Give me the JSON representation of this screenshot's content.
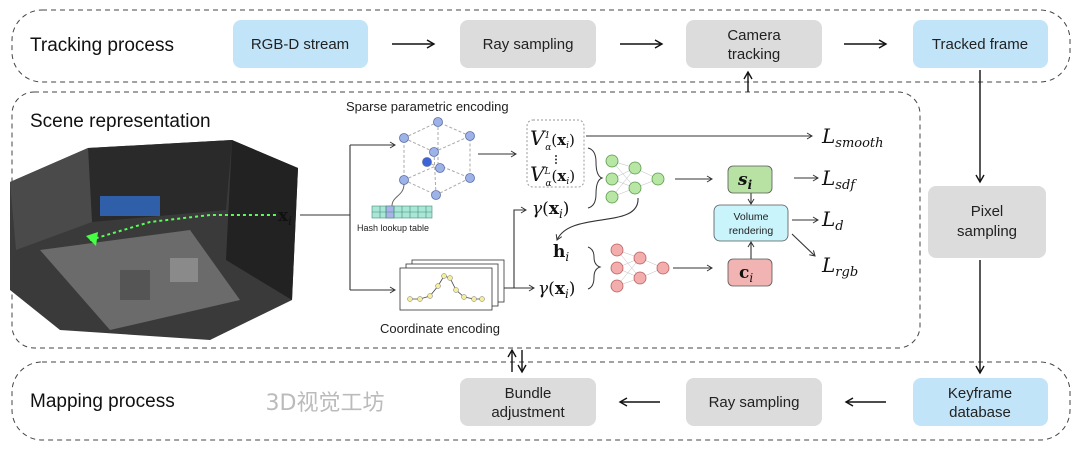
{
  "colors": {
    "blue_box": "#c2e4f9",
    "gray_box": "#dcdcdc",
    "green": "#b8e2a4",
    "cyan": "#c9f4fb",
    "pink": "#f2b3b3",
    "node_blue": "#9db2e6",
    "node_green": "#b8e6a4",
    "node_pink": "#f3adad",
    "hash": "#a8e6d6"
  },
  "tracking": {
    "title": "Tracking process",
    "boxes": [
      "RGB-D stream",
      "Ray sampling",
      "Camera",
      "tracking",
      "Tracked frame"
    ]
  },
  "scene": {
    "title": "Scene representation",
    "sparse_label": "Sparse parametric encoding",
    "hash_label": "Hash lookup table",
    "coord_label": "Coordinate encoding",
    "volume": [
      "Volume",
      "rendering"
    ],
    "x": "x",
    "i": "i",
    "V": "V",
    "alpha": "α",
    "sup1": "1",
    "supL": "L",
    "gamma": "γ",
    "h": "h",
    "s": "s",
    "c": "c",
    "L": "L",
    "loss_smooth": "smooth",
    "loss_sdf": "sdf",
    "loss_d": "d",
    "loss_rgb": "rgb"
  },
  "pixel": [
    "Pixel",
    "sampling"
  ],
  "mapping": {
    "title": "Mapping process",
    "boxes": [
      "Bundle",
      "adjustment",
      "Ray sampling",
      "Keyframe",
      "database"
    ]
  },
  "watermark": "3D视觉工坊"
}
